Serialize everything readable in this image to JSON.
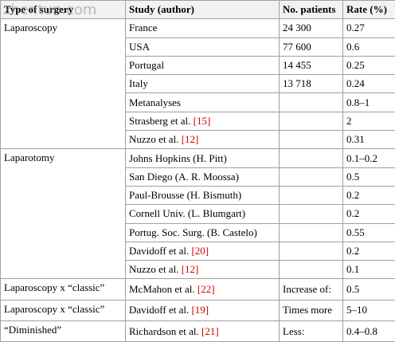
{
  "watermark": "zhentun.com",
  "header": {
    "type": "Type of surgery",
    "study": "Study (author)",
    "patients": "No. patients",
    "rate": "Rate (%)"
  },
  "groups": [
    {
      "type": "Laparoscopy",
      "rows": [
        {
          "study": "France",
          "patients": "24 300",
          "rate": "0.27"
        },
        {
          "study": "USA",
          "patients": "77 600",
          "rate": "0.6"
        },
        {
          "study": "Portugal",
          "patients": "14 455",
          "rate": "0.25"
        },
        {
          "study": "Italy",
          "patients": "13 718",
          "rate": "0.24"
        },
        {
          "study": "Metanalyses",
          "rate": "0.8–1"
        },
        {
          "study": "Strasberg et al.",
          "ref": "[15]",
          "rate": "2"
        },
        {
          "study": "Nuzzo et al.",
          "ref": "[12]",
          "rate": "0.31"
        }
      ]
    },
    {
      "type": "Laparotomy",
      "rows": [
        {
          "study": "Johns Hopkins (H. Pitt)",
          "rate": "0.1–0.2"
        },
        {
          "study": "San Diego (A. R. Moossa)",
          "rate": "0.5"
        },
        {
          "study": "Paul-Brousse (H. Bismuth)",
          "rate": "0.2"
        },
        {
          "study": "Cornell Univ. (L. Blumgart)",
          "rate": "0.2"
        },
        {
          "study": "Portug. Soc. Surg. (B. Castelo)",
          "rate": "0.55"
        },
        {
          "study": "Davidoff et al.",
          "ref": "[20]",
          "rate": "0.2"
        },
        {
          "study": "Nuzzo et al.",
          "ref": "[12]",
          "rate": "0.1"
        }
      ]
    },
    {
      "type": "Laparoscopy x “classic”",
      "rows": [
        {
          "study": "McMahon et al.",
          "ref": "[22]",
          "patients": "Increase of:",
          "rate": "0.5"
        }
      ]
    },
    {
      "type": "Laparoscopy x “classic”",
      "rows": [
        {
          "study": "Davidoff et al.",
          "ref": "[19]",
          "patients": "Times more",
          "rate": "5–10"
        }
      ]
    },
    {
      "type": "“Diminished”",
      "rows": [
        {
          "study": "Richardson et al.",
          "ref": "[21]",
          "patients": "Less:",
          "rate": "0.4–0.8"
        }
      ]
    }
  ]
}
